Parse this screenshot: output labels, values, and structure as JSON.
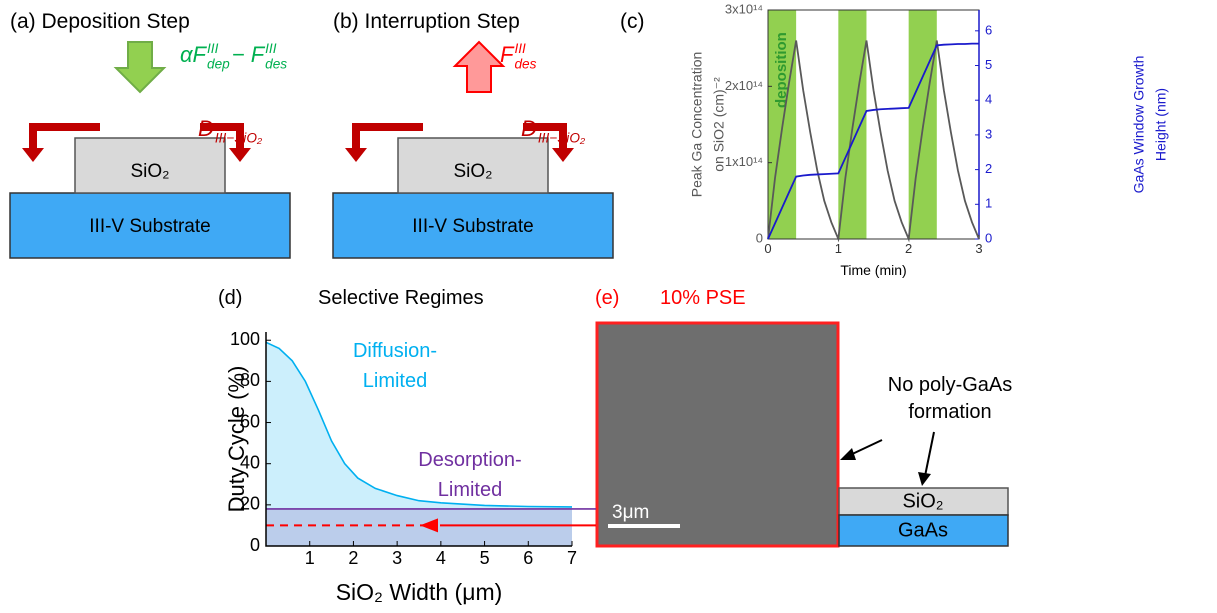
{
  "panel_a": {
    "label": "(a) Deposition Step",
    "flux": [
      {
        "base": "αF",
        "sup": "III",
        "sub": "dep"
      },
      {
        "base": " − F",
        "sup": "III",
        "sub": "des"
      }
    ],
    "diffusion": [
      {
        "base": "D",
        "sub": "III−SiO₂"
      }
    ],
    "oxide": "SiO₂",
    "substrate": "III-V Substrate"
  },
  "panel_b": {
    "label": "(b) Interruption Step",
    "flux": [
      {
        "base": "F",
        "sup": "III",
        "sub": "des"
      }
    ],
    "diffusion": [
      {
        "base": "D",
        "sub": "III−SiO₂"
      }
    ],
    "oxide": "SiO₂",
    "substrate": "III-V Substrate"
  },
  "chart_data": [
    {
      "type": "line",
      "label": "(c)",
      "x": [
        0,
        0.1,
        0.2,
        0.3,
        0.4,
        0.5,
        0.6,
        0.7,
        0.8,
        0.9,
        1,
        1.1,
        1.2,
        1.3,
        1.4,
        1.5,
        1.6,
        1.7,
        1.8,
        1.9,
        2,
        2.1,
        2.2,
        2.3,
        2.4,
        2.5,
        2.6,
        2.7,
        2.8,
        2.9,
        3
      ],
      "xlim": [
        0,
        3
      ],
      "xticks": [
        0,
        1,
        2,
        3
      ],
      "xlabel": "Time (min)",
      "ylim": [
        0,
        300000000000000.0
      ],
      "yticks": [
        0,
        {
          "value": 100000000000000.0,
          "label": "1x10¹⁴"
        },
        {
          "value": 200000000000000.0,
          "label": "2x10¹⁴"
        },
        {
          "value": 300000000000000.0,
          "label": "3x10¹⁴"
        }
      ],
      "ylabel": [
        "Peak Ga Concentration",
        "on SiO2 (cm)⁻²"
      ],
      "y2lim": [
        0,
        6.6
      ],
      "y2ticks": [
        0,
        1,
        2,
        3,
        4,
        5,
        6
      ],
      "y2label": [
        "GaAs Window Growth",
        "Height (nm)"
      ],
      "shaded_regions": [
        [
          0,
          0.4
        ],
        [
          1,
          1.4
        ],
        [
          2,
          2.4
        ]
      ],
      "shaded_label": "deposition",
      "shaded_color": "#92d050",
      "series": [
        {
          "color": "#595959",
          "values": [
            0,
            80000000000000.0,
            145000000000000.0,
            205000000000000.0,
            260000000000000.0,
            195000000000000.0,
            140000000000000.0,
            90000000000000.0,
            50000000000000.0,
            22000000000000.0,
            0,
            80000000000000.0,
            145000000000000.0,
            205000000000000.0,
            260000000000000.0,
            195000000000000.0,
            140000000000000.0,
            90000000000000.0,
            50000000000000.0,
            22000000000000.0,
            0,
            80000000000000.0,
            145000000000000.0,
            205000000000000.0,
            260000000000000.0,
            195000000000000.0,
            140000000000000.0,
            90000000000000.0,
            50000000000000.0,
            22000000000000.0,
            0
          ]
        },
        {
          "color": "#1a1acc",
          "axis": "y2",
          "values": [
            0,
            0.45,
            0.9,
            1.35,
            1.8,
            1.83,
            1.85,
            1.86,
            1.87,
            1.88,
            1.89,
            2.34,
            2.79,
            3.24,
            3.69,
            3.72,
            3.74,
            3.75,
            3.76,
            3.77,
            3.78,
            4.23,
            4.68,
            5.13,
            5.58,
            5.6,
            5.61,
            5.62,
            5.62,
            5.63,
            5.63
          ]
        }
      ]
    },
    {
      "type": "area",
      "label": "(d)",
      "title": "Selective Regimes",
      "x": [
        0,
        0.3,
        0.6,
        0.9,
        1.2,
        1.5,
        1.8,
        2.1,
        2.5,
        3,
        3.5,
        4,
        5,
        6,
        7
      ],
      "series": [
        {
          "color": "#00b0f0",
          "values": [
            99,
            96,
            90,
            80,
            66,
            51,
            40,
            33,
            28,
            24.5,
            22,
            21,
            19.7,
            19.2,
            19
          ]
        }
      ],
      "xlim": [
        0,
        7
      ],
      "xticks": [
        1,
        2,
        3,
        4,
        5,
        6,
        7
      ],
      "xlabel": "SiO₂ Width (μm)",
      "ylim": [
        0,
        104
      ],
      "yticks": [
        0,
        20,
        40,
        60,
        80,
        100
      ],
      "ylabel": "Duty Cycle (%)",
      "regions": [
        {
          "label": [
            "Diffusion-",
            "Limited"
          ],
          "color": "#00b0f0"
        },
        {
          "label": [
            "Desorption-",
            "Limited"
          ],
          "color": "#7030a0"
        }
      ],
      "reference_lines": [
        {
          "value": 18,
          "color": "#7030a0"
        },
        {
          "value": 10,
          "color": "#ff0000",
          "dashed": true
        }
      ]
    }
  ],
  "panel_e": {
    "label": "(e)",
    "title": "10% PSE",
    "scale_bar": "3μm",
    "annotation": [
      "No poly-GaAs",
      "formation"
    ],
    "oxide": "SiO₂",
    "substrate": "GaAs"
  }
}
